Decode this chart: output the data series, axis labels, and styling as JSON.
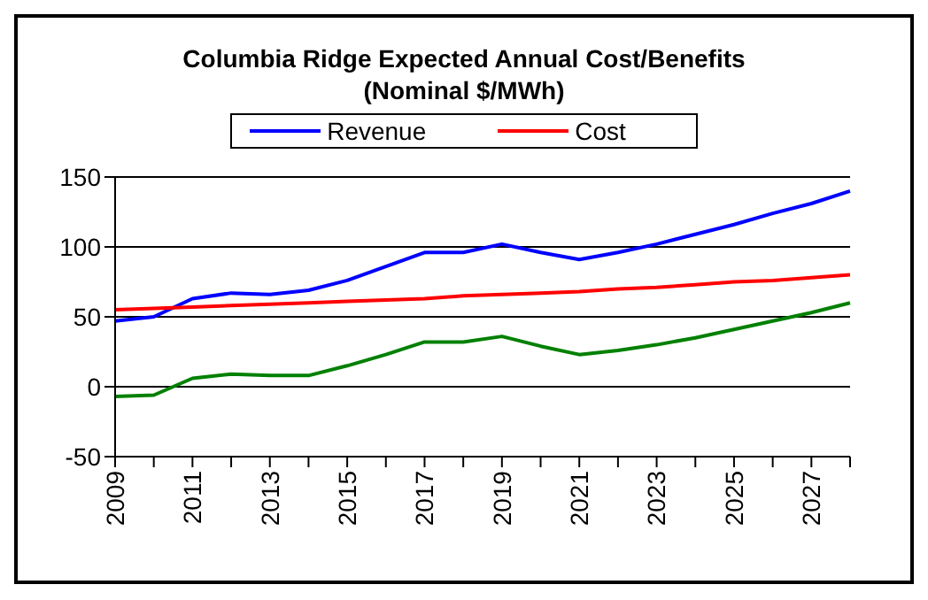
{
  "chart_data": {
    "type": "line",
    "title": "Columbia Ridge Expected Annual Cost/Benefits",
    "subtitle": "(Nominal $/MWh)",
    "categories": [
      "2009",
      null,
      "2011",
      null,
      "2013",
      null,
      "2015",
      null,
      "2017",
      null,
      "2019",
      null,
      "2021",
      null,
      "2023",
      null,
      "2025",
      null,
      "2027",
      null
    ],
    "series": [
      {
        "name": "Revenue",
        "color": "#0000ff",
        "values": [
          47,
          50,
          63,
          67,
          66,
          69,
          76,
          86,
          96,
          96,
          102,
          96,
          91,
          96,
          102,
          109,
          116,
          124,
          131,
          140
        ]
      },
      {
        "name": "Cost",
        "color": "#ff0000",
        "values": [
          55,
          56,
          57,
          58,
          59,
          60,
          61,
          62,
          63,
          65,
          66,
          67,
          68,
          70,
          71,
          73,
          75,
          76,
          78,
          80
        ]
      },
      {
        "color": "#008000",
        "values": [
          -7,
          -6,
          6,
          9,
          8,
          8,
          15,
          23,
          32,
          32,
          36,
          29,
          23,
          26,
          30,
          35,
          41,
          47,
          53,
          60
        ]
      }
    ],
    "ylim": [
      -50,
      150
    ],
    "yticks": [
      -50,
      0,
      50,
      100,
      150
    ],
    "grid": "y",
    "legend": "top",
    "marker": "none",
    "line_style": "solid"
  }
}
